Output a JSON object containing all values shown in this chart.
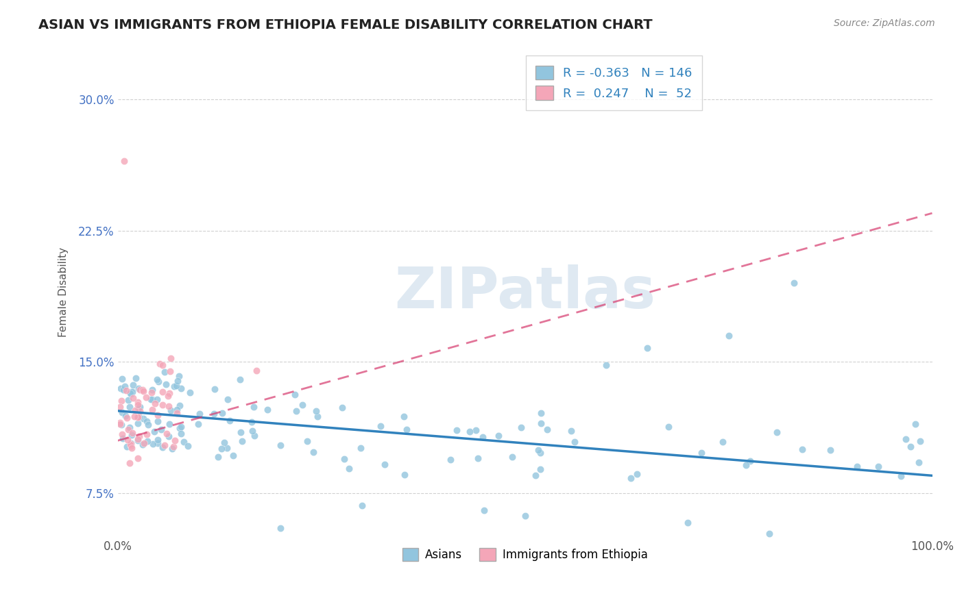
{
  "title": "ASIAN VS IMMIGRANTS FROM ETHIOPIA FEMALE DISABILITY CORRELATION CHART",
  "source": "Source: ZipAtlas.com",
  "ylabel": "Female Disability",
  "legend_label1": "Asians",
  "legend_label2": "Immigrants from Ethiopia",
  "r1": -0.363,
  "n1": 146,
  "r2": 0.247,
  "n2": 52,
  "color_blue": "#92c5de",
  "color_pink": "#f4a6b8",
  "color_blue_trend": "#3182bd",
  "color_pink_trend": "#d63b6e",
  "watermark": "ZIPatlas",
  "watermark_color": "#c5d8e8",
  "xlim": [
    0,
    100
  ],
  "ylim": [
    5.0,
    33.0
  ],
  "yticks": [
    7.5,
    15.0,
    22.5,
    30.0
  ],
  "ytick_labels": [
    "7.5%",
    "15.0%",
    "22.5%",
    "30.0%"
  ],
  "blue_trend_start": 12.2,
  "blue_trend_end": 8.5,
  "pink_trend_start": 10.5,
  "pink_trend_end": 23.5
}
